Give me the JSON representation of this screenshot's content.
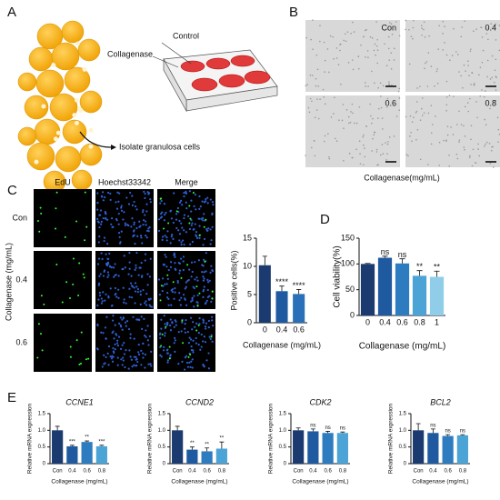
{
  "panel_labels": [
    "A",
    "B",
    "C",
    "D",
    "E"
  ],
  "panel_a": {
    "control": "Control",
    "collagenase": "Collagenase",
    "step": "Isolate granulosa cells"
  },
  "panel_b": {
    "tiles": [
      "Con",
      "0.4",
      "0.6",
      "0.8"
    ],
    "xlabel": "Collagenase(mg/mL)"
  },
  "panel_c_images": {
    "columns": [
      "EdU",
      "Hoechst33342",
      "Merge"
    ],
    "rows": [
      "Con",
      "0.4",
      "0.6"
    ],
    "side_label": "Collagenase (mg/mL)"
  },
  "chart_data": [
    {
      "type": "bar",
      "ylabel": "Positive cells(%)",
      "xlabel": "Collagenase (mg/mL)",
      "categories": [
        "0",
        "0.4",
        "0.6"
      ],
      "values": [
        10.2,
        5.6,
        5.1
      ],
      "errors": [
        1.6,
        0.9,
        0.8
      ],
      "annotations": [
        null,
        "****",
        "****"
      ],
      "colors": [
        "#1b3a70",
        "#1f5aa0",
        "#2a70b8"
      ],
      "ylim": [
        0,
        15
      ],
      "yticks": [
        0,
        5,
        10,
        15
      ]
    },
    {
      "type": "bar",
      "ylabel": "Cell viability(%)",
      "xlabel": "Collagenase (mg/mL)",
      "categories": [
        "0",
        "0.4",
        "0.6",
        "0.8",
        "1"
      ],
      "values": [
        100,
        112,
        101,
        77,
        75
      ],
      "errors": [
        1,
        3,
        9,
        10,
        11
      ],
      "annotations": [
        null,
        "ns",
        "ns",
        "**",
        "**"
      ],
      "colors": [
        "#1b3a70",
        "#1f5aa0",
        "#2d7cc0",
        "#4ba3d6",
        "#8fcde8"
      ],
      "ylim": [
        0,
        150
      ],
      "yticks": [
        0,
        50,
        100,
        150
      ]
    },
    {
      "type": "bar",
      "title": "CCNE1",
      "ylabel": "Relative mRNA expression",
      "xlabel": "Collagenase (mg/mL)",
      "categories": [
        "Con",
        "0.4",
        "0.6",
        "0.8"
      ],
      "values": [
        1.0,
        0.52,
        0.65,
        0.52
      ],
      "errors": [
        0.12,
        0.03,
        0.03,
        0.03
      ],
      "annotations": [
        null,
        "***",
        "**",
        "***"
      ],
      "colors": [
        "#1b3a70",
        "#1f5aa0",
        "#2d7cc0",
        "#4ba3d6"
      ],
      "ylim": [
        0,
        1.5
      ],
      "yticks": [
        0,
        0.5,
        {
          "value": 1,
          "label": "1.0"
        },
        1.5
      ]
    },
    {
      "type": "bar",
      "title": "CCND2",
      "ylabel": "Relative mRNA expression",
      "xlabel": "Collagenase (mg/mL)",
      "categories": [
        "Con",
        "0.4",
        "0.6",
        "0.8"
      ],
      "values": [
        1.0,
        0.42,
        0.37,
        0.45
      ],
      "errors": [
        0.12,
        0.08,
        0.1,
        0.2
      ],
      "annotations": [
        null,
        "**",
        "**",
        "**"
      ],
      "colors": [
        "#1b3a70",
        "#1f5aa0",
        "#2d7cc0",
        "#4ba3d6"
      ],
      "ylim": [
        0,
        1.5
      ],
      "yticks": [
        0,
        0.5,
        {
          "value": 1,
          "label": "1.0"
        },
        1.5
      ]
    },
    {
      "type": "bar",
      "title": "CDK2",
      "ylabel": "Relative mRNA expression",
      "xlabel": "Collagenase (mg/mL)",
      "categories": [
        "Con",
        "0.4",
        "0.6",
        "0.8"
      ],
      "values": [
        1.0,
        0.97,
        0.92,
        0.92
      ],
      "errors": [
        0.07,
        0.07,
        0.05,
        0.03
      ],
      "annotations": [
        null,
        "ns",
        "ns",
        "ns"
      ],
      "colors": [
        "#1b3a70",
        "#1f5aa0",
        "#2d7cc0",
        "#4ba3d6"
      ],
      "ylim": [
        0,
        1.5
      ],
      "yticks": [
        0,
        0.5,
        {
          "value": 1,
          "label": "1.0"
        },
        1.5
      ]
    },
    {
      "type": "bar",
      "title": "BCL2",
      "ylabel": "Relative mRNA expression",
      "xlabel": "Collagenase (mg/mL)",
      "categories": [
        "Con",
        "0.4",
        "0.6",
        "0.8"
      ],
      "values": [
        1.0,
        0.92,
        0.83,
        0.85
      ],
      "errors": [
        0.2,
        0.12,
        0.04,
        0.02
      ],
      "annotations": [
        null,
        "ns",
        "ns",
        "ns"
      ],
      "colors": [
        "#1b3a70",
        "#1f5aa0",
        "#2d7cc0",
        "#4ba3d6"
      ],
      "ylim": [
        0,
        1.5
      ],
      "yticks": [
        0,
        0.5,
        {
          "value": 1,
          "label": "1.0"
        },
        1.5
      ]
    }
  ]
}
